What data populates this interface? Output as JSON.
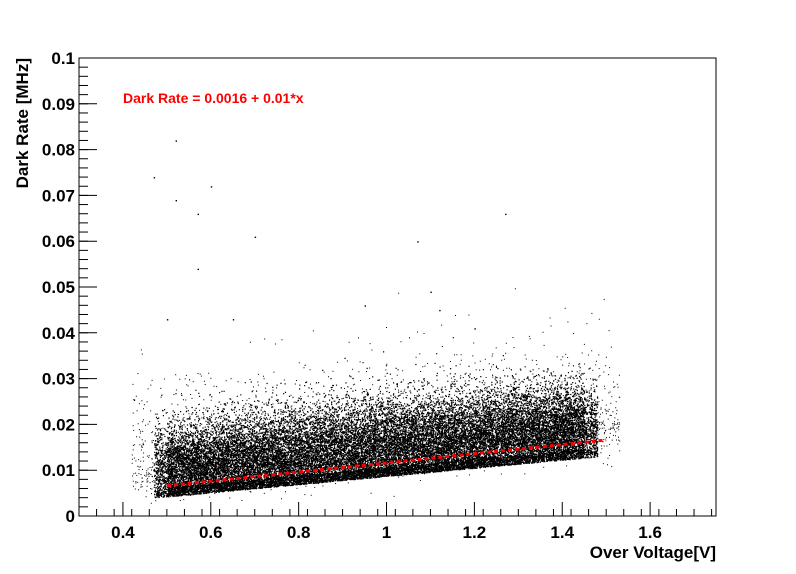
{
  "chart_data": {
    "type": "scatter",
    "title": "",
    "xlabel": "Over Voltage[V]",
    "ylabel": "Dark Rate [MHz]",
    "xlim": [
      0.3,
      1.75
    ],
    "ylim": [
      0,
      0.1
    ],
    "x_ticks": [
      0.4,
      0.6,
      0.8,
      1,
      1.2,
      1.4,
      1.6
    ],
    "x_tick_labels": [
      "0.4",
      "0.6",
      "0.8",
      "1",
      "1.2",
      "1.4",
      "1.6"
    ],
    "y_ticks": [
      0,
      0.01,
      0.02,
      0.03,
      0.04,
      0.05,
      0.06,
      0.07,
      0.08,
      0.09,
      0.1
    ],
    "y_tick_labels": [
      "0",
      "0.01",
      "0.02",
      "0.03",
      "0.04",
      "0.05",
      "0.06",
      "0.07",
      "0.08",
      "0.09",
      "0.1"
    ],
    "grid": false,
    "series": [
      {
        "kind": "scatter-density",
        "color": "#000000",
        "description_points": [
          [
            0.5,
            0.009
          ],
          [
            0.6,
            0.01
          ],
          [
            0.7,
            0.011
          ],
          [
            0.8,
            0.012
          ],
          [
            0.9,
            0.013
          ],
          [
            1.0,
            0.014
          ],
          [
            1.1,
            0.016
          ],
          [
            1.2,
            0.017
          ],
          [
            1.3,
            0.018
          ],
          [
            1.4,
            0.019
          ],
          [
            1.45,
            0.019
          ]
        ],
        "x_range": [
          0.47,
          1.48
        ],
        "y_band_low": [
          0.004,
          0.013
        ],
        "y_band_high": [
          0.025,
          0.035
        ],
        "outliers": [
          [
            0.52,
            0.082
          ],
          [
            0.47,
            0.074
          ],
          [
            0.6,
            0.072
          ],
          [
            0.52,
            0.069
          ],
          [
            0.57,
            0.066
          ],
          [
            1.27,
            0.066
          ],
          [
            0.7,
            0.061
          ],
          [
            1.07,
            0.06
          ],
          [
            0.57,
            0.054
          ],
          [
            1.1,
            0.049
          ],
          [
            0.95,
            0.046
          ],
          [
            1.12,
            0.045
          ],
          [
            0.65,
            0.043
          ],
          [
            1.2,
            0.041
          ],
          [
            0.5,
            0.043
          ]
        ]
      },
      {
        "kind": "fit-line",
        "color": "#ff0000",
        "style": "dashed",
        "intercept": 0.0016,
        "slope": 0.01,
        "x_range": [
          0.5,
          1.5
        ]
      }
    ],
    "annotations": [
      {
        "text": "Dark Rate = 0.0016 + 0.01*x",
        "color": "#ff0000",
        "position": "top-left"
      }
    ]
  }
}
